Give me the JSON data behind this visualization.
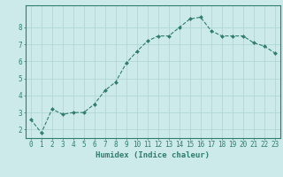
{
  "x": [
    0,
    1,
    2,
    3,
    4,
    5,
    6,
    7,
    8,
    9,
    10,
    11,
    12,
    13,
    14,
    15,
    16,
    17,
    18,
    19,
    20,
    21,
    22,
    23
  ],
  "y": [
    2.6,
    1.8,
    3.2,
    2.9,
    3.0,
    3.0,
    3.5,
    4.3,
    4.8,
    5.9,
    6.6,
    7.2,
    7.5,
    7.5,
    8.0,
    8.5,
    8.6,
    7.8,
    7.5,
    7.5,
    7.5,
    7.1,
    6.9,
    6.5
  ],
  "xlabel": "Humidex (Indice chaleur)",
  "ylabel": "",
  "title": "",
  "line_color": "#2e7d6e",
  "marker": "D",
  "marker_size": 2.0,
  "bg_color": "#cceaea",
  "grid_color": "#aad4d4",
  "axis_color": "#2e7d6e",
  "tick_color": "#2e7d6e",
  "ylim": [
    1.5,
    9.3
  ],
  "xlim": [
    -0.5,
    23.5
  ],
  "yticks": [
    2,
    3,
    4,
    5,
    6,
    7,
    8
  ],
  "xticks": [
    0,
    1,
    2,
    3,
    4,
    5,
    6,
    7,
    8,
    9,
    10,
    11,
    12,
    13,
    14,
    15,
    16,
    17,
    18,
    19,
    20,
    21,
    22,
    23
  ],
  "xlabel_fontsize": 6.5,
  "tick_fontsize": 5.5,
  "linewidth": 0.8
}
